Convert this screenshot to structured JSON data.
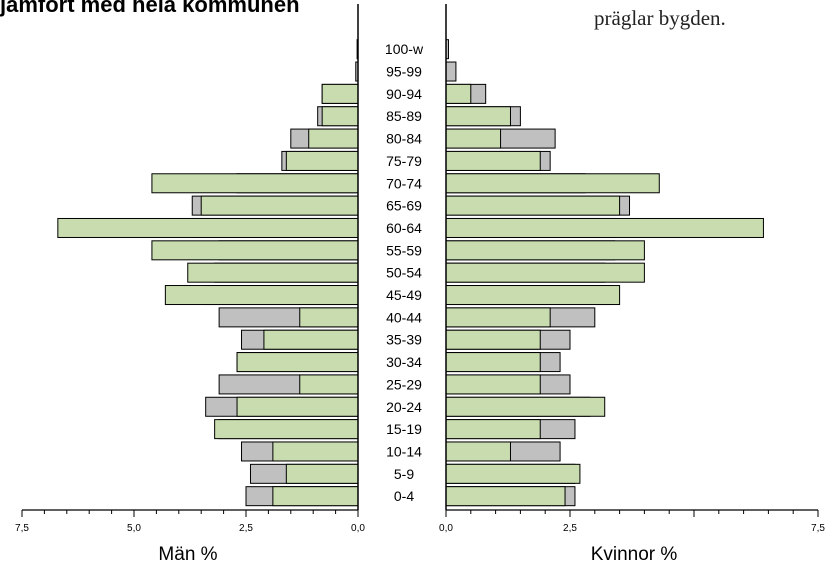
{
  "header": {
    "left_text": "jämfört med hela kommunen",
    "right_text": "präglar bygden."
  },
  "chart_data": {
    "type": "bar",
    "orientation": "horizontal population pyramid",
    "categories": [
      "0-4",
      "5-9",
      "10-14",
      "15-19",
      "20-24",
      "25-29",
      "30-34",
      "35-39",
      "40-44",
      "45-49",
      "50-54",
      "55-59",
      "60-64",
      "65-69",
      "70-74",
      "75-79",
      "80-84",
      "85-89",
      "90-94",
      "95-99",
      "100-w"
    ],
    "men": {
      "xlabel": "Män %",
      "xlim": [
        0,
        7.5
      ],
      "ticks": [
        "7,5",
        "5,0",
        "2,5",
        "0,0"
      ],
      "series": [
        {
          "role": "kommun",
          "color": "#c0c0c0",
          "values": [
            2.5,
            2.4,
            2.6,
            3.1,
            3.4,
            3.1,
            2.7,
            2.6,
            3.1,
            3.4,
            3.2,
            3.1,
            3.7,
            3.7,
            2.7,
            1.7,
            1.5,
            0.9,
            0.8,
            0.05,
            0.02
          ]
        },
        {
          "role": "område",
          "color": "#c9dcaf",
          "values": [
            1.9,
            1.6,
            1.9,
            3.2,
            2.7,
            1.3,
            2.7,
            2.1,
            1.3,
            4.3,
            3.8,
            4.6,
            6.7,
            3.5,
            4.6,
            1.6,
            1.1,
            0.8,
            0.8,
            0.0,
            0.0
          ]
        }
      ]
    },
    "women": {
      "xlabel": "Kvinnor %",
      "xlim": [
        0,
        7.5
      ],
      "ticks": [
        "0,0",
        "2,5",
        "7,5"
      ],
      "series": [
        {
          "role": "kommun",
          "color": "#c0c0c0",
          "values": [
            2.6,
            2.6,
            2.3,
            2.6,
            2.9,
            2.5,
            2.3,
            2.5,
            3.0,
            3.3,
            3.2,
            3.4,
            3.4,
            3.7,
            2.8,
            2.1,
            2.2,
            1.5,
            0.8,
            0.2,
            0.05
          ]
        },
        {
          "role": "område",
          "color": "#c9dcaf",
          "values": [
            2.4,
            2.7,
            1.3,
            1.9,
            3.2,
            1.9,
            1.9,
            1.9,
            2.1,
            3.5,
            4.0,
            4.0,
            6.4,
            3.5,
            4.3,
            1.9,
            1.1,
            1.3,
            0.5,
            0.0,
            0.0
          ]
        }
      ]
    }
  }
}
